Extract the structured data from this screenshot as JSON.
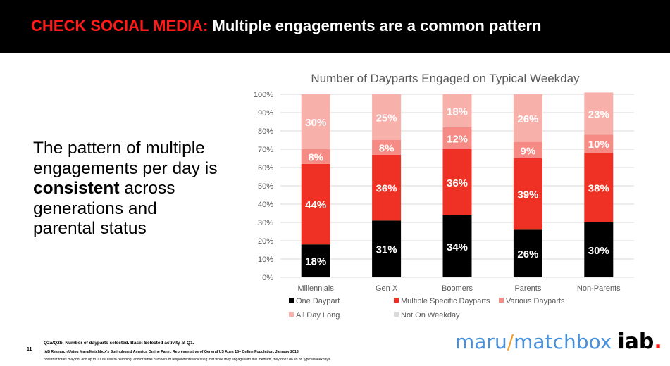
{
  "header": {
    "title_prefix": "CHECK SOCIAL MEDIA:",
    "title_rest": " Multiple engagements are a common pattern"
  },
  "body": {
    "text_before": "The pattern of multiple engagements per day is ",
    "text_bold": "consistent",
    "text_after": " across generations and parental status"
  },
  "chart_data": {
    "type": "bar",
    "stacked": true,
    "title": "Number of Dayparts Engaged on Typical Weekday",
    "categories": [
      "Millennials",
      "Gen X",
      "Boomers",
      "Parents",
      "Non-Parents"
    ],
    "ylim": [
      0,
      100
    ],
    "yticks": [
      "0%",
      "10%",
      "20%",
      "30%",
      "40%",
      "50%",
      "60%",
      "70%",
      "80%",
      "90%",
      "100%"
    ],
    "series": [
      {
        "name": "One Daypart",
        "color": "#000000",
        "label_color": "#ffffff",
        "values": [
          18,
          31,
          34,
          26,
          30
        ]
      },
      {
        "name": "Multiple Specific Dayparts",
        "color": "#ee3124",
        "label_color": "#ffffff",
        "values": [
          44,
          36,
          36,
          39,
          38
        ]
      },
      {
        "name": "Various Dayparts",
        "color": "#f58b84",
        "label_color": "#ffffff",
        "values": [
          8,
          8,
          12,
          9,
          10
        ]
      },
      {
        "name": "All Day Long",
        "color": "#f8b0ab",
        "label_color": "#ffffff",
        "values": [
          30,
          25,
          18,
          26,
          23
        ]
      },
      {
        "name": "Not On Weekday",
        "color": "#d9d9d9",
        "label_color": "#ffffff",
        "values": [
          0,
          0,
          0,
          0,
          0
        ]
      }
    ],
    "legend_position": "bottom"
  },
  "footer": {
    "slide_number": "11",
    "note1": "Q2a/Q2b. Number of dayparts selected. Base: Selected activity at Q1.",
    "note2": "IAB Research Using Maru/Matchbox's Springboard America Online Panel, Representative of General US Ages 18+ Online Population, January 2018",
    "note3": "note that totals may not add up to 100% due to rounding, and/or small numbers of respondents indicating that while they engage with this medium, they don't do so on typical weekdays"
  },
  "logo": {
    "maru": "maru",
    "slash": "/",
    "matchbox": "matchbox",
    "iab": "iab",
    "dot": "."
  }
}
